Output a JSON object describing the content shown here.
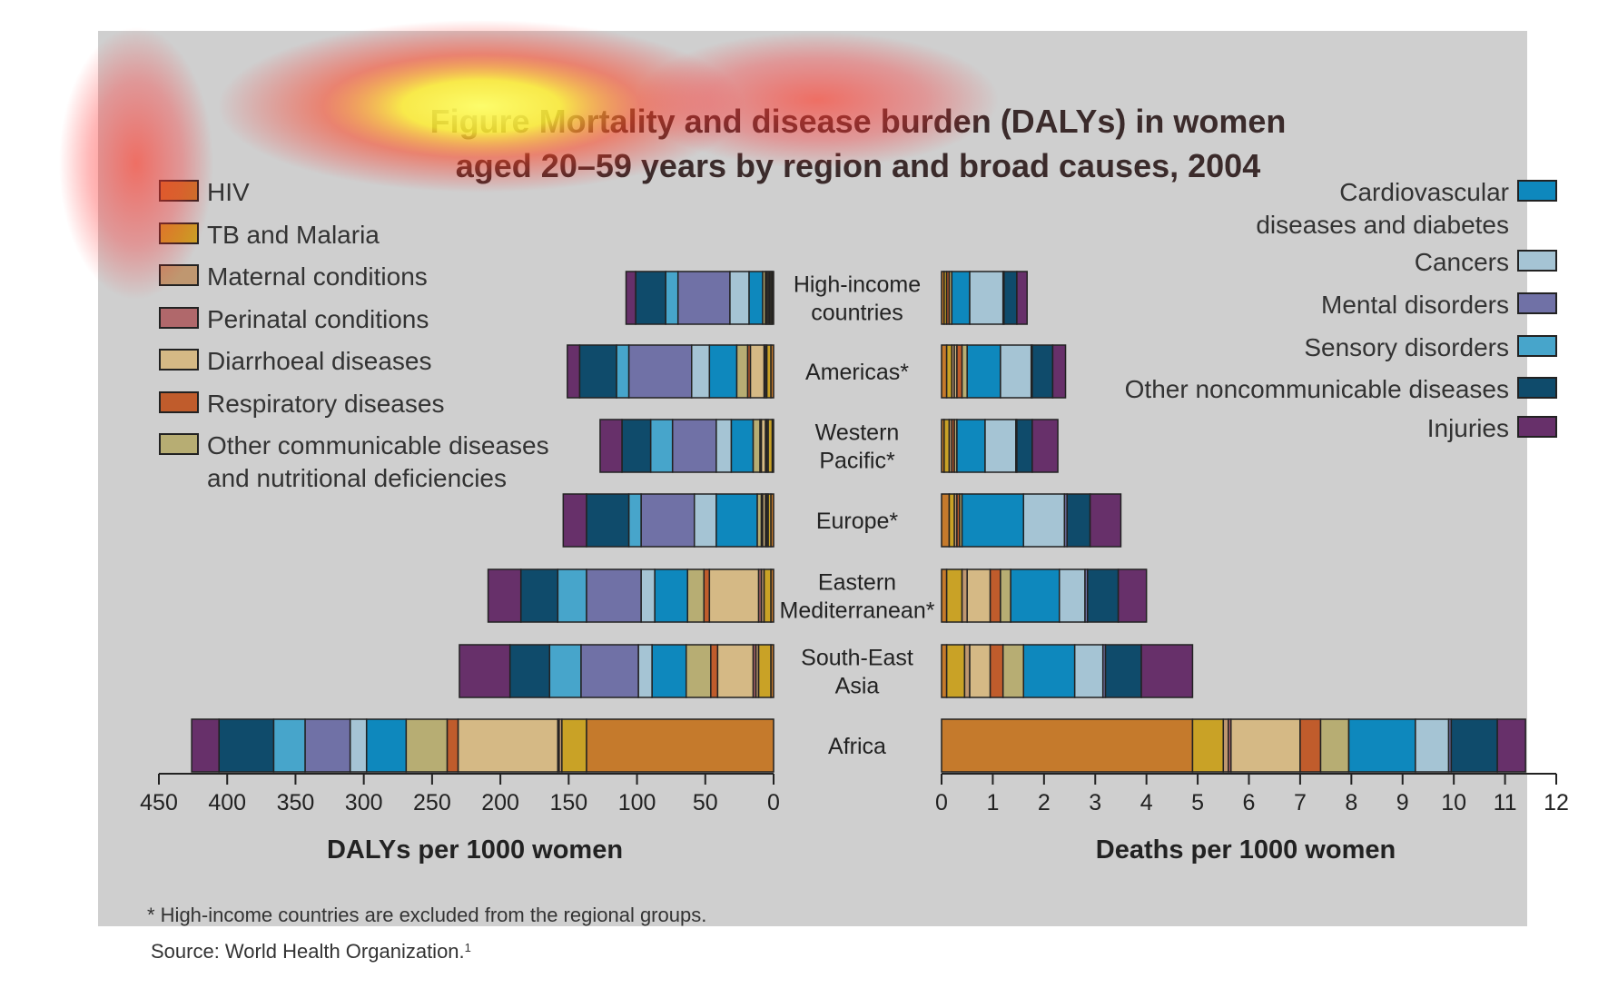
{
  "chart_data": {
    "type": "bar",
    "title_lines": [
      "Figure     Mortality and disease burden (DALYs) in women",
      "aged 20–59 years by region and broad causes, 2004"
    ],
    "left_xlabel": "DALYs per 1000 women",
    "right_xlabel": "Deaths per 1000 women",
    "left_ticks": [
      "450",
      "400",
      "350",
      "300",
      "250",
      "200",
      "150",
      "100",
      "50",
      "0"
    ],
    "right_ticks": [
      "0",
      "1",
      "2",
      "3",
      "4",
      "5",
      "6",
      "7",
      "8",
      "9",
      "10",
      "11",
      "12"
    ],
    "left_xlim": [
      0,
      450
    ],
    "right_xlim": [
      0,
      12
    ],
    "categories": [
      {
        "lines": [
          "High-income",
          "countries"
        ]
      },
      {
        "lines": [
          "Americas*"
        ]
      },
      {
        "lines": [
          "Western",
          "Pacific*"
        ]
      },
      {
        "lines": [
          "Europe*"
        ]
      },
      {
        "lines": [
          "Eastern",
          "Mediterranean*"
        ]
      },
      {
        "lines": [
          "South-East",
          "Asia"
        ]
      },
      {
        "lines": [
          "Africa"
        ]
      }
    ],
    "legend_left": [
      {
        "lines": [
          "HIV"
        ],
        "color": "#c57a2c"
      },
      {
        "lines": [
          "TB and Malaria"
        ],
        "color": "#c9a226"
      },
      {
        "lines": [
          "Maternal conditions"
        ],
        "color": "#bf9770"
      },
      {
        "lines": [
          "Perinatal conditions"
        ],
        "color": "#b0686b"
      },
      {
        "lines": [
          "Diarrhoeal diseases"
        ],
        "color": "#d5b985"
      },
      {
        "lines": [
          "Respiratory diseases"
        ],
        "color": "#c05c2c"
      },
      {
        "lines": [
          "Other communicable diseases",
          "and nutritional deficiencies"
        ],
        "color": "#b7ad73"
      }
    ],
    "legend_right": [
      {
        "lines": [
          "Cardiovascular",
          "diseases and diabetes"
        ],
        "color": "#0e88bd"
      },
      {
        "lines": [
          "Cancers"
        ],
        "color": "#a5c4d4"
      },
      {
        "lines": [
          "Mental disorders"
        ],
        "color": "#7071a6"
      },
      {
        "lines": [
          "Sensory disorders"
        ],
        "color": "#47a5cb"
      },
      {
        "lines": [
          "Other noncommunicable diseases"
        ],
        "color": "#0f4b6b"
      },
      {
        "lines": [
          "Injuries"
        ],
        "color": "#67306a"
      }
    ],
    "series": [
      {
        "name": "HIV",
        "color": "#c57a2c",
        "dalys": [
          1,
          2,
          1,
          2,
          2,
          2,
          137
        ],
        "deaths": [
          0.05,
          0.1,
          0.05,
          0.15,
          0.1,
          0.1,
          4.9
        ]
      },
      {
        "name": "TB and Malaria",
        "color": "#c9a226",
        "dalys": [
          1,
          3,
          3,
          2,
          5,
          9,
          18
        ],
        "deaths": [
          0.05,
          0.1,
          0.1,
          0.1,
          0.3,
          0.35,
          0.6
        ]
      },
      {
        "name": "Maternal conditions",
        "color": "#bf9770",
        "dalys": [
          1,
          1,
          1,
          1,
          2,
          2,
          2
        ],
        "deaths": [
          0,
          0.05,
          0.05,
          0.05,
          0.1,
          0.1,
          0.1
        ]
      },
      {
        "name": "Perinatal conditions",
        "color": "#b0686b",
        "dalys": [
          1,
          1,
          1,
          1,
          2,
          2,
          1
        ],
        "deaths": [
          0,
          0,
          0,
          0,
          0,
          0,
          0.05
        ]
      },
      {
        "name": "Diarrhoeal diseases",
        "color": "#d5b985",
        "dalys": [
          1,
          10,
          3,
          2,
          36,
          26,
          73
        ],
        "deaths": [
          0,
          0.05,
          0,
          0,
          0.45,
          0.4,
          1.35
        ]
      },
      {
        "name": "Respiratory diseases",
        "color": "#c05c2c",
        "dalys": [
          1,
          2,
          1,
          1,
          4,
          5,
          8
        ],
        "deaths": [
          0.05,
          0.1,
          0.05,
          0.05,
          0.2,
          0.25,
          0.4
        ]
      },
      {
        "name": "Other communicable diseases and nutritional deficiencies",
        "color": "#b7ad73",
        "dalys": [
          2,
          8,
          5,
          3,
          12,
          18,
          30
        ],
        "deaths": [
          0.05,
          0.1,
          0.05,
          0.05,
          0.2,
          0.4,
          0.55
        ]
      },
      {
        "name": "Cardiovascular diseases and diabetes",
        "color": "#0e88bd",
        "dalys": [
          10,
          20,
          16,
          30,
          24,
          25,
          29
        ],
        "deaths": [
          0.35,
          0.65,
          0.55,
          1.2,
          0.95,
          1.0,
          1.3
        ]
      },
      {
        "name": "Cancers",
        "color": "#a5c4d4",
        "dalys": [
          14,
          13,
          11,
          16,
          10,
          10,
          12
        ],
        "deaths": [
          0.65,
          0.6,
          0.6,
          0.8,
          0.5,
          0.55,
          0.65
        ]
      },
      {
        "name": "Mental disorders",
        "color": "#7071a6",
        "dalys": [
          38,
          46,
          32,
          39,
          40,
          42,
          33
        ],
        "deaths": [
          0.02,
          0.02,
          0.02,
          0.05,
          0.05,
          0.05,
          0.05
        ]
      },
      {
        "name": "Sensory disorders",
        "color": "#47a5cb",
        "dalys": [
          9,
          9,
          16,
          9,
          21,
          23,
          23
        ],
        "deaths": [
          0,
          0,
          0,
          0,
          0,
          0,
          0
        ]
      },
      {
        "name": "Other noncommunicable diseases",
        "color": "#0f4b6b",
        "dalys": [
          22,
          27,
          21,
          31,
          27,
          29,
          40
        ],
        "deaths": [
          0.25,
          0.4,
          0.3,
          0.45,
          0.6,
          0.7,
          0.9
        ]
      },
      {
        "name": "Injuries",
        "color": "#67306a",
        "dalys": [
          7,
          9,
          16,
          17,
          24,
          37,
          20
        ],
        "deaths": [
          0.2,
          0.25,
          0.5,
          0.6,
          0.55,
          1.0,
          0.55
        ]
      }
    ],
    "footnote": "* High-income countries are excluded from the regional groups.",
    "source": "Source: World Health Organization.",
    "source_superscript": "1"
  }
}
